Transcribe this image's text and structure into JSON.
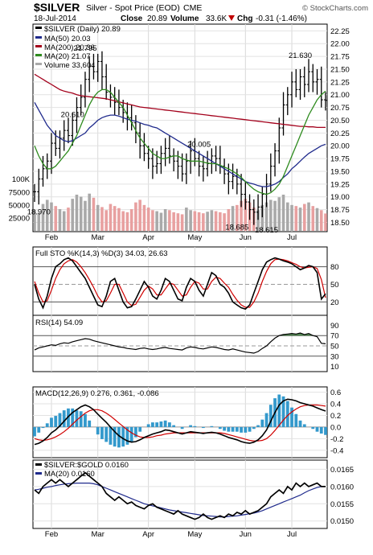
{
  "header": {
    "symbol": "$SILVER",
    "name": "Silver - Spot Price (EOD)",
    "exchange": "CME",
    "logo": "© StockCharts.com",
    "date": "18-Jul-2014",
    "close_label": "Close",
    "close": "20.89",
    "volume_label": "Volume",
    "volume": "33.6K",
    "chg_label": "Chg",
    "chg": "-0.31 (-1.46%)",
    "chg_icon": "down-triangle-icon"
  },
  "colors": {
    "price_bar": "#000000",
    "ma50": "#1f2a8c",
    "ma200": "#a3001b",
    "ma20": "#2e8b1e",
    "volume_up": "#a9a9a9",
    "volume_down": "#e8a0a0",
    "sto_k": "#000000",
    "sto_d": "#d00000",
    "rsi_fill": "#3a7a3a",
    "macd_line": "#000000",
    "macd_signal": "#d00000",
    "macd_hist": "#3399cc",
    "ratio_line": "#000000",
    "ratio_ma": "#1f2a8c"
  },
  "chart_data": [
    {
      "type": "line",
      "panel": "price",
      "legend": [
        {
          "text": "$SILVER (Daily) 20.89"
        },
        {
          "text": "MA(50) 20.03"
        },
        {
          "text": "MA(200) 20.36"
        },
        {
          "text": "MA(20) 21.07"
        },
        {
          "text": "Volume 33,604"
        }
      ],
      "x_labels": [
        "Feb",
        "Mar",
        "Apr",
        "May",
        "Jun",
        "Jul"
      ],
      "y_ticks": [
        "22.25",
        "22.00",
        "21.75",
        "21.50",
        "21.25",
        "21.00",
        "20.75",
        "20.50",
        "20.25",
        "20.00",
        "19.75",
        "19.50",
        "19.25",
        "19.00",
        "18.75",
        "18.50"
      ],
      "ylim": [
        18.35,
        22.35
      ],
      "volume_ticks": [
        "100K",
        "75000",
        "50000",
        "25000"
      ],
      "annotations": [
        "21.795",
        "20.610",
        "20.005",
        "18.970",
        "18.685",
        "18.615",
        "21.630"
      ],
      "close": [
        19.1,
        19.35,
        19.55,
        19.7,
        20.05,
        19.95,
        20.15,
        20.3,
        20.2,
        20.5,
        20.75,
        20.95,
        21.3,
        21.55,
        21.45,
        21.65,
        21.35,
        21.05,
        20.95,
        20.85,
        20.75,
        20.65,
        20.55,
        20.45,
        20.25,
        20.0,
        19.85,
        19.75,
        19.6,
        19.65,
        19.85,
        19.95,
        19.8,
        19.7,
        19.6,
        19.45,
        19.7,
        19.9,
        19.75,
        19.6,
        19.55,
        19.65,
        19.8,
        19.75,
        19.6,
        19.45,
        19.3,
        19.4,
        19.25,
        19.05,
        18.9,
        18.75,
        18.7,
        18.8,
        19.05,
        19.25,
        19.6,
        19.9,
        20.35,
        20.8,
        21.0,
        21.25,
        21.1,
        21.35,
        21.2,
        21.45,
        21.25,
        21.3,
        20.9,
        20.89
      ],
      "ma50": [
        20.85,
        20.7,
        20.55,
        20.4,
        20.3,
        20.2,
        20.15,
        20.1,
        20.08,
        20.1,
        20.15,
        20.2,
        20.25,
        20.35,
        20.42,
        20.5,
        20.55,
        20.58,
        20.6,
        20.6,
        20.58,
        20.55,
        20.52,
        20.5,
        20.48,
        20.45,
        20.42,
        20.4,
        20.37,
        20.35,
        20.3,
        20.25,
        20.2,
        20.15,
        20.1,
        20.05,
        20.0,
        19.95,
        19.9,
        19.85,
        19.8,
        19.75,
        19.7,
        19.65,
        19.6,
        19.55,
        19.5,
        19.45,
        19.4,
        19.35,
        19.3,
        19.27,
        19.25,
        19.22,
        19.2,
        19.2,
        19.22,
        19.25,
        19.3,
        19.38,
        19.45,
        19.55,
        19.62,
        19.7,
        19.78,
        19.85,
        19.9,
        19.95,
        20.0,
        20.03
      ],
      "ma200": [
        21.4,
        21.35,
        21.3,
        21.25,
        21.2,
        21.15,
        21.1,
        21.07,
        21.05,
        21.03,
        21.0,
        20.98,
        20.97,
        20.96,
        20.95,
        20.94,
        20.93,
        20.92,
        20.9,
        20.88,
        20.86,
        20.84,
        20.82,
        20.8,
        20.78,
        20.76,
        20.75,
        20.74,
        20.73,
        20.72,
        20.71,
        20.7,
        20.69,
        20.68,
        20.67,
        20.66,
        20.65,
        20.64,
        20.63,
        20.62,
        20.61,
        20.6,
        20.59,
        20.58,
        20.57,
        20.56,
        20.55,
        20.54,
        20.53,
        20.52,
        20.51,
        20.5,
        20.49,
        20.48,
        20.47,
        20.46,
        20.45,
        20.44,
        20.43,
        20.42,
        20.41,
        20.4,
        20.39,
        20.38,
        20.38,
        20.37,
        20.37,
        20.36,
        20.36,
        20.36
      ],
      "ma20": [
        20.0,
        19.8,
        19.65,
        19.55,
        19.55,
        19.6,
        19.7,
        19.8,
        19.9,
        20.05,
        20.2,
        20.4,
        20.6,
        20.8,
        20.95,
        21.05,
        21.1,
        21.1,
        21.05,
        20.95,
        20.85,
        20.75,
        20.6,
        20.45,
        20.3,
        20.15,
        20.05,
        19.95,
        19.85,
        19.8,
        19.75,
        19.75,
        19.78,
        19.8,
        19.8,
        19.75,
        19.72,
        19.7,
        19.7,
        19.7,
        19.68,
        19.66,
        19.65,
        19.65,
        19.62,
        19.58,
        19.55,
        19.5,
        19.45,
        19.38,
        19.3,
        19.22,
        19.15,
        19.1,
        19.07,
        19.05,
        19.08,
        19.15,
        19.25,
        19.4,
        19.6,
        19.8,
        20.0,
        20.2,
        20.4,
        20.6,
        20.75,
        20.9,
        21.0,
        21.07
      ],
      "volume": [
        40000,
        35000,
        52000,
        60000,
        55000,
        48000,
        42000,
        38000,
        45000,
        62000,
        70000,
        66000,
        58000,
        72000,
        64000,
        50000,
        46000,
        40000,
        52000,
        48000,
        44000,
        38000,
        36000,
        42000,
        55000,
        60000,
        50000,
        45000,
        40000,
        38000,
        35000,
        42000,
        40000,
        36000,
        34000,
        32000,
        45000,
        40000,
        38000,
        36000,
        34000,
        37000,
        40000,
        38000,
        36000,
        34000,
        42000,
        48000,
        50000,
        58000,
        62000,
        55000,
        45000,
        40000,
        50000,
        55000,
        60000,
        58000,
        65000,
        70000,
        55000,
        50000,
        48000,
        45000,
        52000,
        55000,
        48000,
        44000,
        40000,
        33604
      ]
    },
    {
      "type": "line",
      "panel": "stochastic",
      "legend": [
        {
          "text": "Full STO %K(14,3) %D(3) 34.03, 26.63"
        }
      ],
      "y_ticks": [
        "80",
        "50",
        "20"
      ],
      "ylim": [
        0,
        100
      ],
      "k": [
        50,
        25,
        10,
        30,
        60,
        80,
        85,
        92,
        95,
        90,
        80,
        70,
        60,
        45,
        30,
        15,
        12,
        30,
        55,
        60,
        40,
        20,
        10,
        12,
        25,
        40,
        55,
        45,
        30,
        25,
        40,
        60,
        55,
        40,
        25,
        22,
        45,
        60,
        55,
        40,
        30,
        50,
        70,
        65,
        50,
        45,
        35,
        20,
        15,
        10,
        8,
        15,
        35,
        55,
        75,
        88,
        92,
        95,
        93,
        90,
        88,
        85,
        80,
        75,
        78,
        82,
        80,
        70,
        25,
        34
      ],
      "d": [
        55,
        35,
        20,
        22,
        40,
        60,
        75,
        85,
        90,
        92,
        88,
        80,
        70,
        58,
        45,
        30,
        20,
        22,
        35,
        50,
        50,
        35,
        20,
        14,
        16,
        28,
        40,
        47,
        42,
        32,
        32,
        42,
        52,
        50,
        40,
        30,
        32,
        45,
        55,
        52,
        42,
        42,
        55,
        62,
        60,
        52,
        45,
        33,
        23,
        15,
        11,
        11,
        20,
        35,
        55,
        72,
        85,
        92,
        93,
        92,
        90,
        87,
        84,
        80,
        78,
        79,
        80,
        77,
        58,
        27
      ]
    },
    {
      "type": "area",
      "panel": "rsi",
      "legend": [
        {
          "text": "RSI(14) 54.09"
        }
      ],
      "y_ticks": [
        "90",
        "70",
        "50",
        "30",
        "10"
      ],
      "ylim": [
        0,
        100
      ],
      "values": [
        42,
        46,
        48,
        50,
        52,
        51,
        54,
        56,
        55,
        58,
        60,
        62,
        64,
        63,
        60,
        58,
        56,
        54,
        52,
        50,
        48,
        47,
        45,
        44,
        43,
        45,
        46,
        44,
        43,
        44,
        46,
        47,
        45,
        44,
        43,
        42,
        46,
        48,
        47,
        45,
        44,
        46,
        48,
        47,
        45,
        43,
        42,
        44,
        42,
        40,
        38,
        37,
        36,
        39,
        45,
        50,
        58,
        65,
        70,
        72,
        73,
        74,
        73,
        75,
        72,
        74,
        70,
        68,
        55,
        54.09
      ]
    },
    {
      "type": "bar",
      "panel": "macd",
      "legend": [
        {
          "text": "MACD(12,26,9) 0.276, 0.361, -0.086"
        }
      ],
      "y_ticks": [
        "0.6",
        "0.4",
        "0.2",
        "0.0",
        "-0.2",
        "-0.4"
      ],
      "ylim": [
        -0.5,
        0.65
      ],
      "macd": [
        -0.3,
        -0.28,
        -0.24,
        -0.18,
        -0.1,
        -0.05,
        0.02,
        0.1,
        0.18,
        0.25,
        0.3,
        0.35,
        0.38,
        0.35,
        0.3,
        0.22,
        0.15,
        0.08,
        0.0,
        -0.08,
        -0.15,
        -0.2,
        -0.24,
        -0.26,
        -0.25,
        -0.22,
        -0.18,
        -0.15,
        -0.12,
        -0.1,
        -0.08,
        -0.05,
        -0.06,
        -0.08,
        -0.1,
        -0.12,
        -0.1,
        -0.08,
        -0.09,
        -0.1,
        -0.11,
        -0.1,
        -0.09,
        -0.1,
        -0.12,
        -0.15,
        -0.18,
        -0.2,
        -0.22,
        -0.25,
        -0.27,
        -0.28,
        -0.26,
        -0.22,
        -0.15,
        -0.05,
        0.1,
        0.25,
        0.38,
        0.45,
        0.48,
        0.47,
        0.45,
        0.42,
        0.4,
        0.38,
        0.36,
        0.33,
        0.3,
        0.276
      ],
      "signal": [
        -0.2,
        -0.22,
        -0.23,
        -0.22,
        -0.2,
        -0.17,
        -0.13,
        -0.08,
        -0.02,
        0.05,
        0.12,
        0.18,
        0.24,
        0.28,
        0.3,
        0.3,
        0.28,
        0.24,
        0.19,
        0.13,
        0.07,
        0.01,
        -0.05,
        -0.1,
        -0.14,
        -0.17,
        -0.18,
        -0.18,
        -0.17,
        -0.15,
        -0.14,
        -0.12,
        -0.11,
        -0.1,
        -0.1,
        -0.1,
        -0.1,
        -0.1,
        -0.1,
        -0.1,
        -0.1,
        -0.1,
        -0.1,
        -0.1,
        -0.1,
        -0.11,
        -0.13,
        -0.15,
        -0.17,
        -0.19,
        -0.21,
        -0.23,
        -0.24,
        -0.24,
        -0.23,
        -0.2,
        -0.14,
        -0.06,
        0.03,
        0.12,
        0.2,
        0.26,
        0.31,
        0.35,
        0.37,
        0.38,
        0.38,
        0.38,
        0.37,
        0.361
      ]
    },
    {
      "type": "line",
      "panel": "ratio",
      "legend": [
        {
          "text": "$SILVER:$GOLD 0.0160"
        },
        {
          "text": "MA(20) 0.0160"
        }
      ],
      "y_ticks": [
        "0.0165",
        "0.0160",
        "0.0155",
        "0.0150"
      ],
      "ylim": [
        0.01483,
        0.01672
      ],
      "ratio": [
        0.0159,
        0.0158,
        0.016,
        0.0161,
        0.0162,
        0.0161,
        0.0162,
        0.0161,
        0.016,
        0.0161,
        0.0162,
        0.0163,
        0.0164,
        0.0163,
        0.0162,
        0.0161,
        0.016,
        0.0158,
        0.0157,
        0.0156,
        0.0157,
        0.0156,
        0.0155,
        0.01555,
        0.01545,
        0.0154,
        0.01535,
        0.01545,
        0.0155,
        0.0154,
        0.01535,
        0.0153,
        0.01525,
        0.0152,
        0.0153,
        0.0152,
        0.01515,
        0.0151,
        0.01505,
        0.0151,
        0.0152,
        0.0151,
        0.01505,
        0.0151,
        0.01515,
        0.0151,
        0.0152,
        0.01515,
        0.01525,
        0.0152,
        0.0153,
        0.0152,
        0.01525,
        0.0153,
        0.0154,
        0.0155,
        0.0157,
        0.0158,
        0.0159,
        0.0158,
        0.016,
        0.0159,
        0.0161,
        0.016,
        0.0161,
        0.016,
        0.01605,
        0.0161,
        0.016,
        0.016
      ],
      "ma": [
        0.0159,
        0.01592,
        0.01595,
        0.01598,
        0.016,
        0.01603,
        0.01605,
        0.01607,
        0.01608,
        0.01609,
        0.0161,
        0.0161,
        0.0161,
        0.0161,
        0.01608,
        0.01605,
        0.016,
        0.01595,
        0.0159,
        0.01585,
        0.0158,
        0.01575,
        0.0157,
        0.01565,
        0.0156,
        0.01555,
        0.0155,
        0.01547,
        0.01544,
        0.01541,
        0.01538,
        0.01535,
        0.01532,
        0.0153,
        0.01528,
        0.01526,
        0.01524,
        0.01522,
        0.0152,
        0.01518,
        0.01516,
        0.01515,
        0.01514,
        0.01513,
        0.01512,
        0.01512,
        0.01513,
        0.01514,
        0.01515,
        0.01517,
        0.01519,
        0.01521,
        0.01523,
        0.01526,
        0.0153,
        0.01535,
        0.0154,
        0.01545,
        0.0155,
        0.01555,
        0.0156,
        0.01565,
        0.0157,
        0.01575,
        0.01582,
        0.01588,
        0.01593,
        0.01597,
        0.016,
        0.016
      ]
    }
  ]
}
